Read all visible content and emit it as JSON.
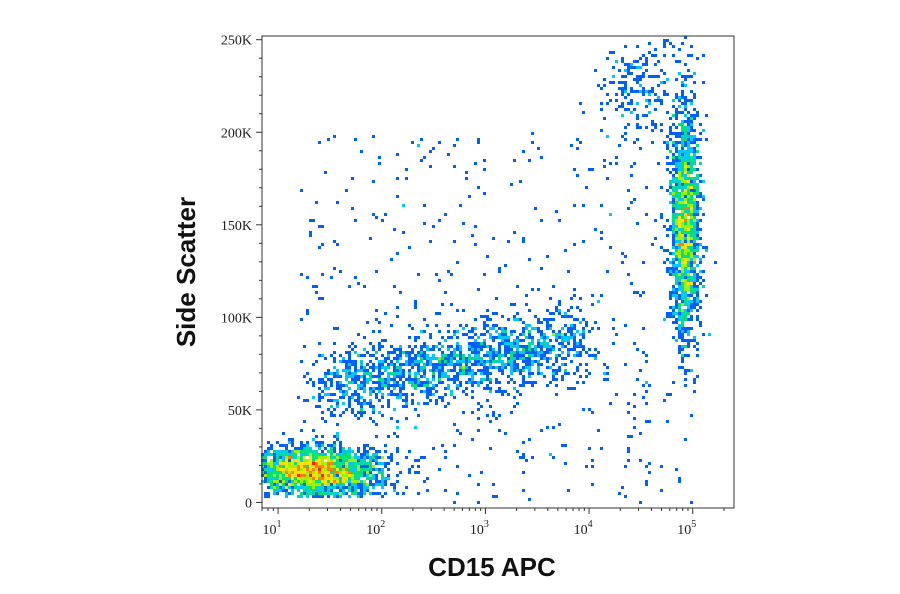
{
  "chart_data": {
    "type": "scatter",
    "subtype": "flow-cytometry density dot plot",
    "xlabel": "CD15 APC",
    "ylabel": "Side Scatter",
    "x_scale": "log",
    "xlim": [
      7,
      250000
    ],
    "ylim": [
      -3000,
      252000
    ],
    "x_ticks": [
      {
        "value": 10,
        "base": "10",
        "exp": "1"
      },
      {
        "value": 100,
        "base": "10",
        "exp": "2"
      },
      {
        "value": 1000,
        "base": "10",
        "exp": "3"
      },
      {
        "value": 10000,
        "base": "10",
        "exp": "4"
      },
      {
        "value": 100000,
        "base": "10",
        "exp": "5"
      }
    ],
    "y_ticks": [
      {
        "value": 0,
        "label": "0"
      },
      {
        "value": 50000,
        "label": "50K"
      },
      {
        "value": 100000,
        "label": "100K"
      },
      {
        "value": 150000,
        "label": "150K"
      },
      {
        "value": 200000,
        "label": "200K"
      },
      {
        "value": 250000,
        "label": "250K"
      }
    ],
    "grid": false,
    "legend": "none",
    "colormap": [
      "#0000c8",
      "#0060ff",
      "#00c8ff",
      "#00e080",
      "#a0f000",
      "#ffe000",
      "#ff8000",
      "#ff2000"
    ],
    "populations": [
      {
        "name_visible": false,
        "x_center": 25,
        "y_center": 15000,
        "count": 2600,
        "density": "very high"
      },
      {
        "name_visible": false,
        "x_center": 90000,
        "y_center": 150000,
        "count": 1800,
        "density": "very high"
      },
      {
        "name_visible": false,
        "x_center": 200,
        "y_center": 75000,
        "count": 1600,
        "density": "medium"
      },
      {
        "name_visible": false,
        "x_center": 30000,
        "y_center": 235000,
        "count": 200,
        "density": "low"
      },
      {
        "name_visible": false,
        "x_center": 2000,
        "y_center": 40000,
        "count": 500,
        "density": "sparse"
      }
    ]
  }
}
